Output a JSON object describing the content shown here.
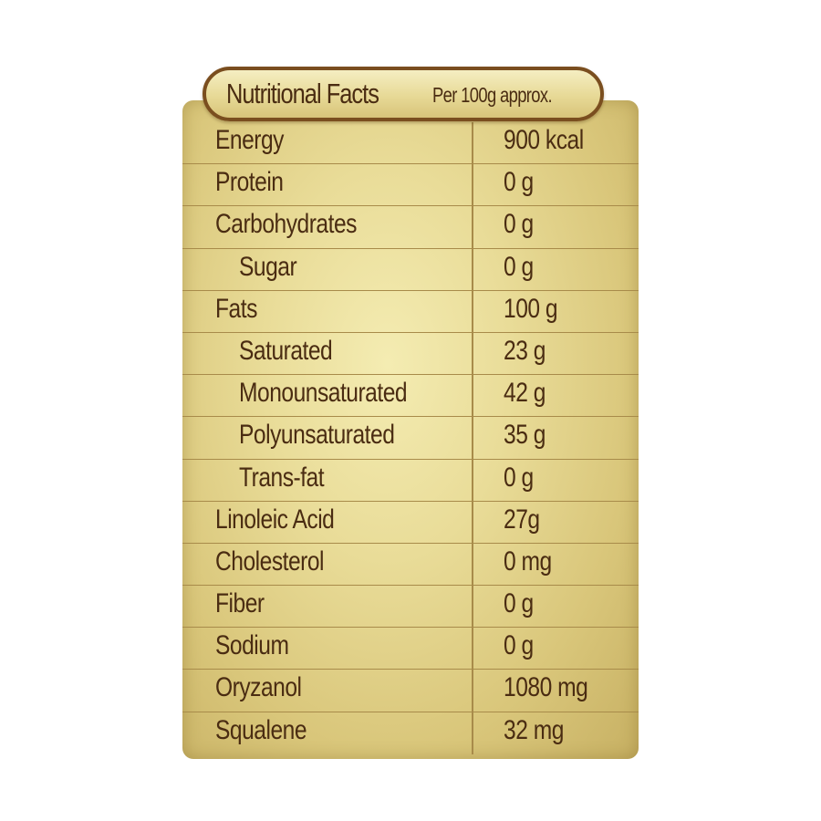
{
  "header": {
    "title": "Nutritional Facts",
    "subtitle": "Per 100g approx."
  },
  "rows": [
    {
      "name": "Energy",
      "value": "900 kcal",
      "indent": false
    },
    {
      "name": "Protein",
      "value": "0 g",
      "indent": false
    },
    {
      "name": "Carbohydrates",
      "value": "0 g",
      "indent": false
    },
    {
      "name": "Sugar",
      "value": "0 g",
      "indent": true
    },
    {
      "name": "Fats",
      "value": "100 g",
      "indent": false
    },
    {
      "name": "Saturated",
      "value": "23 g",
      "indent": true
    },
    {
      "name": "Monounsaturated",
      "value": "42 g",
      "indent": true
    },
    {
      "name": "Polyunsaturated",
      "value": "35 g",
      "indent": true
    },
    {
      "name": "Trans-fat",
      "value": "0 g",
      "indent": true
    },
    {
      "name": "Linoleic Acid",
      "value": "27g",
      "indent": false
    },
    {
      "name": "Cholesterol",
      "value": "0 mg",
      "indent": false
    },
    {
      "name": "Fiber",
      "value": "0 g",
      "indent": false
    },
    {
      "name": "Sodium",
      "value": "0 g",
      "indent": false
    },
    {
      "name": "Oryzanol",
      "value": "1080 mg",
      "indent": false
    },
    {
      "name": "Squalene",
      "value": "32 mg",
      "indent": false
    }
  ],
  "colors": {
    "text": "#4a2c12",
    "border": "#7a4e1f",
    "gold_light": "#f4ecb2",
    "gold_dark": "#c7b063",
    "rule": "#a88b4a"
  }
}
